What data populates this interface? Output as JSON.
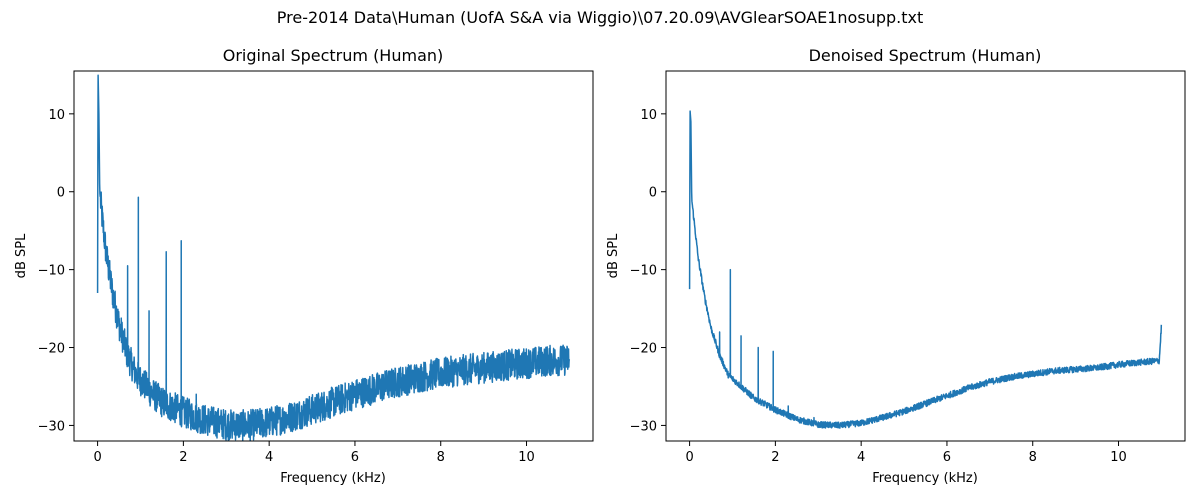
{
  "figure": {
    "suptitle": "Pre-2014 Data\\Human (UofA S&A via Wiggio)\\07.20.09\\AVGlearSOAE1nosupp.txt"
  },
  "chart_data": [
    {
      "type": "line",
      "title": "Original Spectrum (Human)",
      "xlabel": "Frequency (kHz)",
      "ylabel": "dB SPL",
      "xlim": [
        -0.55,
        11.55
      ],
      "ylim": [
        -32.0,
        15.5
      ],
      "xticks": [
        0,
        2,
        4,
        6,
        8,
        10
      ],
      "yticks": [
        -30,
        -20,
        -10,
        0,
        10
      ],
      "grid": false,
      "color": "#1f77b4",
      "noise_band_db": 2.0,
      "series": [
        {
          "baseline": [
            [
              0.0,
              -13.0
            ],
            [
              0.01,
              15.5
            ],
            [
              0.03,
              10.0
            ],
            [
              0.05,
              0.0
            ],
            [
              0.1,
              -3.0
            ],
            [
              0.2,
              -8.0
            ],
            [
              0.35,
              -13.0
            ],
            [
              0.5,
              -17.0
            ],
            [
              0.7,
              -21.0
            ],
            [
              0.9,
              -23.5
            ],
            [
              1.2,
              -25.5
            ],
            [
              1.5,
              -27.0
            ],
            [
              2.0,
              -28.3
            ],
            [
              2.5,
              -29.3
            ],
            [
              3.0,
              -29.9
            ],
            [
              3.5,
              -30.0
            ],
            [
              4.0,
              -29.6
            ],
            [
              4.5,
              -28.9
            ],
            [
              5.0,
              -28.0
            ],
            [
              5.5,
              -27.0
            ],
            [
              6.0,
              -26.0
            ],
            [
              6.5,
              -25.2
            ],
            [
              7.0,
              -24.4
            ],
            [
              7.5,
              -23.8
            ],
            [
              8.0,
              -23.3
            ],
            [
              8.5,
              -22.9
            ],
            [
              9.0,
              -22.6
            ],
            [
              9.5,
              -22.3
            ],
            [
              10.0,
              -22.0
            ],
            [
              10.5,
              -21.7
            ],
            [
              11.0,
              -21.6
            ]
          ],
          "peaks": [
            [
              0.7,
              -9.5
            ],
            [
              0.95,
              -0.7
            ],
            [
              1.2,
              -15.3
            ],
            [
              1.6,
              -7.7
            ],
            [
              1.95,
              -6.3
            ],
            [
              2.3,
              -26.0
            ]
          ]
        }
      ]
    },
    {
      "type": "line",
      "title": "Denoised Spectrum (Human)",
      "xlabel": "Frequency (kHz)",
      "ylabel": "dB SPL",
      "xlim": [
        -0.55,
        11.55
      ],
      "ylim": [
        -32.0,
        15.5
      ],
      "xticks": [
        0,
        2,
        4,
        6,
        8,
        10
      ],
      "yticks": [
        -30,
        -20,
        -10,
        0,
        10
      ],
      "grid": false,
      "color": "#1f77b4",
      "noise_band_db": 0.4,
      "series": [
        {
          "baseline": [
            [
              0.0,
              -12.5
            ],
            [
              0.01,
              10.5
            ],
            [
              0.03,
              9.0
            ],
            [
              0.05,
              -1.0
            ],
            [
              0.1,
              -3.5
            ],
            [
              0.2,
              -8.5
            ],
            [
              0.35,
              -13.5
            ],
            [
              0.5,
              -17.5
            ],
            [
              0.7,
              -21.0
            ],
            [
              0.9,
              -23.5
            ],
            [
              1.2,
              -25.0
            ],
            [
              1.5,
              -26.5
            ],
            [
              2.0,
              -28.0
            ],
            [
              2.5,
              -29.2
            ],
            [
              3.0,
              -29.9
            ],
            [
              3.5,
              -30.0
            ],
            [
              4.0,
              -29.7
            ],
            [
              4.5,
              -29.0
            ],
            [
              5.0,
              -28.2
            ],
            [
              5.5,
              -27.2
            ],
            [
              6.0,
              -26.2
            ],
            [
              6.5,
              -25.2
            ],
            [
              7.0,
              -24.4
            ],
            [
              7.5,
              -23.8
            ],
            [
              8.0,
              -23.4
            ],
            [
              8.5,
              -23.0
            ],
            [
              9.0,
              -22.8
            ],
            [
              9.5,
              -22.6
            ],
            [
              10.0,
              -22.2
            ],
            [
              10.5,
              -21.9
            ],
            [
              10.95,
              -21.7
            ],
            [
              11.0,
              -17.2
            ]
          ],
          "peaks": [
            [
              0.7,
              -18.0
            ],
            [
              0.95,
              -10.0
            ],
            [
              1.2,
              -18.5
            ],
            [
              1.6,
              -20.0
            ],
            [
              1.95,
              -20.5
            ],
            [
              2.3,
              -27.5
            ],
            [
              2.9,
              -29.0
            ]
          ]
        }
      ]
    }
  ]
}
